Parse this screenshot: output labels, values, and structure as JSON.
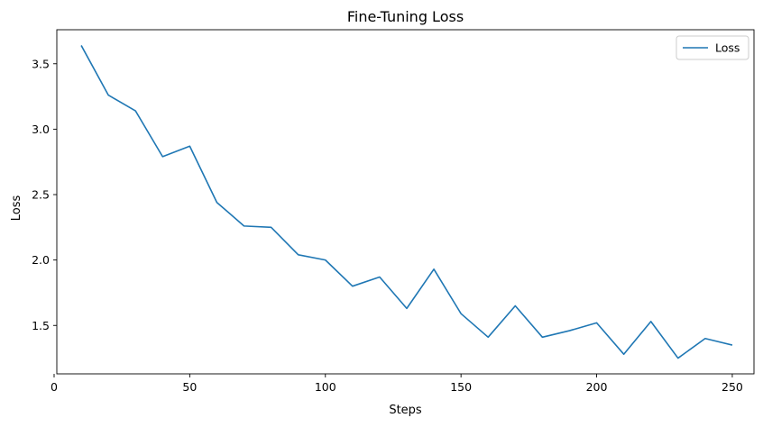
{
  "chart_data": {
    "type": "line",
    "title": "Fine-Tuning Loss",
    "xlabel": "Steps",
    "ylabel": "Loss",
    "xlim": [
      1.0,
      258.0
    ],
    "ylim": [
      1.13,
      3.76
    ],
    "xticks": [
      0,
      50,
      100,
      150,
      200,
      250
    ],
    "yticks": [
      1.5,
      2.0,
      2.5,
      3.0,
      3.5
    ],
    "xtick_labels": [
      "0",
      "50",
      "100",
      "150",
      "200",
      "250"
    ],
    "ytick_labels": [
      "1.5",
      "2.0",
      "2.5",
      "3.0",
      "3.5"
    ],
    "grid": false,
    "legend_position": "top-right",
    "series": [
      {
        "name": "Loss",
        "color": "#1f77b4",
        "x": [
          10,
          20,
          30,
          40,
          50,
          60,
          70,
          80,
          90,
          100,
          110,
          120,
          130,
          140,
          150,
          160,
          170,
          180,
          190,
          200,
          210,
          220,
          230,
          240,
          250
        ],
        "y": [
          3.64,
          3.26,
          3.14,
          2.79,
          2.87,
          2.44,
          2.26,
          2.25,
          2.04,
          2.0,
          1.8,
          1.87,
          1.63,
          1.93,
          1.59,
          1.41,
          1.65,
          1.41,
          1.46,
          1.52,
          1.28,
          1.53,
          1.25,
          1.4,
          1.35
        ]
      }
    ]
  }
}
